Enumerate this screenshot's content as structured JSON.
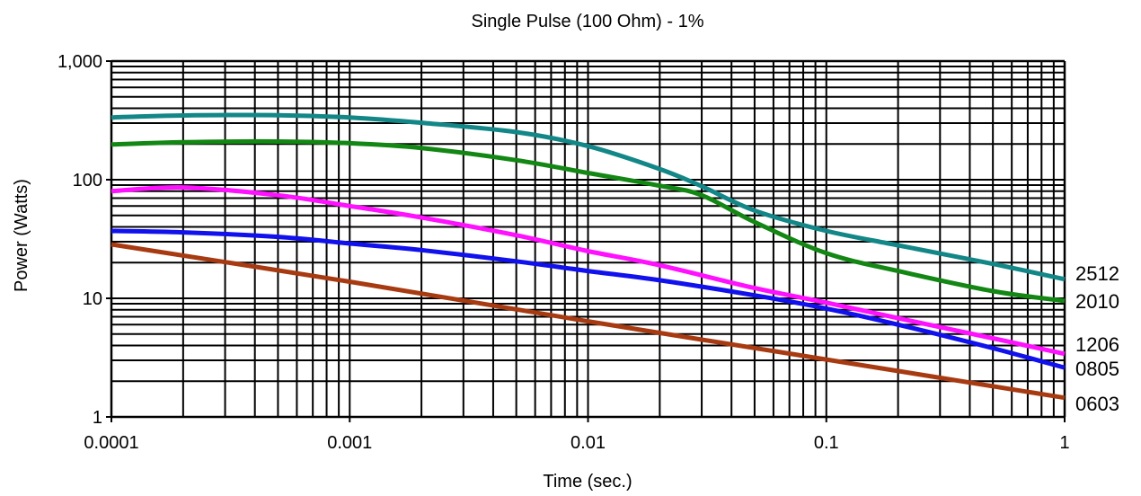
{
  "chart_data": {
    "type": "line",
    "title": "Single Pulse (100 Ohm) - 1%",
    "xlabel": "Time (sec.)",
    "ylabel": "Power (Watts)",
    "x_scale": "log",
    "y_scale": "log",
    "xlim": [
      0.0001,
      1
    ],
    "ylim": [
      1,
      1000
    ],
    "x_ticks": [
      {
        "value": 0.0001,
        "label": "0.0001"
      },
      {
        "value": 0.001,
        "label": "0.001"
      },
      {
        "value": 0.01,
        "label": "0.01"
      },
      {
        "value": 0.1,
        "label": "0.1"
      },
      {
        "value": 1,
        "label": "1"
      }
    ],
    "y_ticks": [
      {
        "value": 1,
        "label": "1"
      },
      {
        "value": 10,
        "label": "10"
      },
      {
        "value": 100,
        "label": "100"
      },
      {
        "value": 1000,
        "label": "1,000"
      }
    ],
    "grid": true,
    "legend": "inline labels at right end of lines",
    "series": [
      {
        "name": "2512",
        "color": "#138787",
        "x": [
          0.0001,
          0.0002,
          0.0005,
          0.001,
          0.002,
          0.005,
          0.01,
          0.02,
          0.03,
          0.05,
          0.1,
          0.2,
          0.5,
          1
        ],
        "y": [
          335,
          348,
          350,
          335,
          302,
          252,
          192,
          123,
          88,
          55,
          37,
          28,
          19.5,
          14.5
        ]
      },
      {
        "name": "2010",
        "color": "#138713",
        "x": [
          0.0001,
          0.0002,
          0.0005,
          0.001,
          0.002,
          0.005,
          0.01,
          0.02,
          0.03,
          0.05,
          0.1,
          0.2,
          0.5,
          1
        ],
        "y": [
          198,
          207,
          210,
          203,
          185,
          146,
          114,
          89,
          74,
          44,
          24,
          17,
          11.5,
          9.5
        ]
      },
      {
        "name": "1206",
        "color": "#ff11ff",
        "x": [
          0.0001,
          0.0002,
          0.0005,
          0.001,
          0.002,
          0.005,
          0.01,
          0.02,
          0.05,
          0.1,
          0.2,
          0.5,
          1
        ],
        "y": [
          80,
          86,
          74,
          60,
          48,
          34,
          25,
          19,
          12.2,
          9.2,
          6.8,
          4.6,
          3.4
        ]
      },
      {
        "name": "0805",
        "color": "#1111ee",
        "x": [
          0.0001,
          0.0002,
          0.0005,
          0.001,
          0.002,
          0.005,
          0.01,
          0.02,
          0.05,
          0.1,
          0.2,
          0.5,
          1
        ],
        "y": [
          37,
          36,
          33,
          29,
          25.5,
          20.5,
          17,
          14.2,
          10.6,
          8.2,
          6,
          3.8,
          2.6
        ]
      },
      {
        "name": "0603",
        "color": "#a83a11",
        "x": [
          0.0001,
          0.001,
          0.01,
          0.1,
          1
        ],
        "y": [
          28.5,
          13.8,
          6.4,
          3.05,
          1.45
        ]
      }
    ]
  }
}
